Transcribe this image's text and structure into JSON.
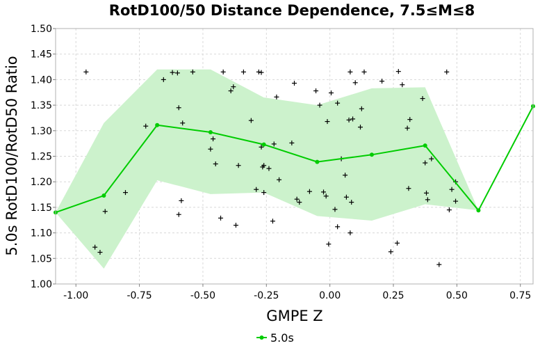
{
  "chart_data": {
    "type": "line",
    "title": "RotD100/50 Distance Dependence, 7.5≤M≤8",
    "xlabel": "GMPE Z",
    "ylabel": "5.0s RotD100/RotD50 Ratio",
    "xlim": [
      -1.08,
      0.8
    ],
    "ylim": [
      1.0,
      1.5
    ],
    "xticks": [
      -1.0,
      -0.75,
      -0.5,
      -0.25,
      0.0,
      0.25,
      0.5,
      0.75
    ],
    "xtick_labels": [
      "-1.00",
      "-0.75",
      "-0.50",
      "-0.25",
      "0.00",
      "0.25",
      "0.50",
      "0.75"
    ],
    "yticks": [
      1.0,
      1.05,
      1.1,
      1.15,
      1.2,
      1.25,
      1.3,
      1.35,
      1.4,
      1.45,
      1.5
    ],
    "ytick_labels": [
      "1.00",
      "1.05",
      "1.10",
      "1.15",
      "1.20",
      "1.25",
      "1.30",
      "1.35",
      "1.40",
      "1.45",
      "1.50"
    ],
    "grid": true,
    "legend_position": "bottom",
    "colors": {
      "line": "#00cc00",
      "band_fill": "#ccf2cc",
      "scatter": "#000000",
      "grid": "#d8d8d8"
    },
    "series": [
      {
        "name": "5.0s",
        "x": [
          -1.08,
          -0.89,
          -0.68,
          -0.47,
          -0.26,
          -0.05,
          0.165,
          0.375,
          0.585,
          0.8
        ],
        "y": [
          1.14,
          1.173,
          1.311,
          1.297,
          1.273,
          1.239,
          1.253,
          1.271,
          1.144,
          1.348
        ]
      }
    ],
    "band": {
      "x": [
        -1.08,
        -0.89,
        -0.68,
        -0.47,
        -0.26,
        -0.05,
        0.165,
        0.375,
        0.585
      ],
      "upper": [
        1.14,
        1.315,
        1.42,
        1.42,
        1.365,
        1.35,
        1.383,
        1.385,
        1.144
      ],
      "lower": [
        1.14,
        1.03,
        1.203,
        1.176,
        1.179,
        1.133,
        1.124,
        1.156,
        1.144
      ]
    },
    "scatter": {
      "x": [
        -0.96,
        -0.885,
        -0.925,
        -0.905,
        -0.805,
        -0.725,
        -0.655,
        -0.62,
        -0.6,
        -0.595,
        -0.595,
        -0.585,
        -0.58,
        -0.54,
        -0.47,
        -0.46,
        -0.45,
        -0.43,
        -0.42,
        -0.39,
        -0.38,
        -0.37,
        -0.36,
        -0.34,
        -0.31,
        -0.29,
        -0.28,
        -0.27,
        -0.27,
        -0.265,
        -0.26,
        -0.26,
        -0.24,
        -0.225,
        -0.22,
        -0.21,
        -0.2,
        -0.15,
        -0.14,
        -0.13,
        -0.12,
        -0.08,
        -0.055,
        -0.04,
        -0.025,
        -0.015,
        -0.01,
        -0.005,
        0.005,
        0.02,
        0.03,
        0.03,
        0.045,
        0.06,
        0.065,
        0.075,
        0.08,
        0.08,
        0.085,
        0.09,
        0.1,
        0.12,
        0.125,
        0.135,
        0.205,
        0.24,
        0.265,
        0.27,
        0.285,
        0.305,
        0.31,
        0.315,
        0.365,
        0.375,
        0.38,
        0.385,
        0.4,
        0.43,
        0.46,
        0.47,
        0.48,
        0.495,
        0.495
      ],
      "y": [
        1.415,
        1.142,
        1.072,
        1.062,
        1.179,
        1.309,
        1.4,
        1.414,
        1.413,
        1.136,
        1.345,
        1.163,
        1.315,
        1.415,
        1.264,
        1.284,
        1.235,
        1.129,
        1.415,
        1.378,
        1.386,
        1.115,
        1.232,
        1.415,
        1.32,
        1.185,
        1.415,
        1.414,
        1.268,
        1.229,
        1.179,
        1.232,
        1.226,
        1.123,
        1.274,
        1.366,
        1.204,
        1.276,
        1.393,
        1.166,
        1.16,
        1.181,
        1.378,
        1.35,
        1.18,
        1.172,
        1.318,
        1.078,
        1.374,
        1.146,
        1.112,
        1.354,
        1.245,
        1.213,
        1.17,
        1.321,
        1.1,
        1.415,
        1.16,
        1.323,
        1.394,
        1.307,
        1.343,
        1.415,
        1.397,
        1.063,
        1.08,
        1.416,
        1.39,
        1.305,
        1.187,
        1.322,
        1.363,
        1.237,
        1.178,
        1.165,
        1.245,
        1.038,
        1.415,
        1.145,
        1.185,
        1.162,
        1.2
      ]
    }
  }
}
